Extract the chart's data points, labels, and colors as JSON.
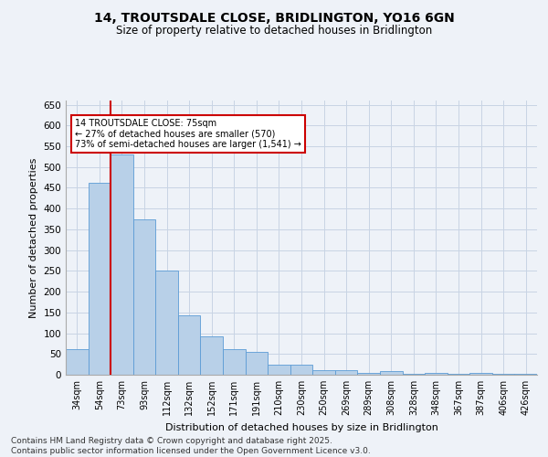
{
  "title1": "14, TROUTSDALE CLOSE, BRIDLINGTON, YO16 6GN",
  "title2": "Size of property relative to detached houses in Bridlington",
  "xlabel": "Distribution of detached houses by size in Bridlington",
  "ylabel": "Number of detached properties",
  "categories": [
    "34sqm",
    "54sqm",
    "73sqm",
    "93sqm",
    "112sqm",
    "132sqm",
    "152sqm",
    "171sqm",
    "191sqm",
    "210sqm",
    "230sqm",
    "250sqm",
    "269sqm",
    "289sqm",
    "308sqm",
    "328sqm",
    "348sqm",
    "367sqm",
    "387sqm",
    "406sqm",
    "426sqm"
  ],
  "values": [
    62,
    463,
    530,
    375,
    250,
    142,
    93,
    62,
    55,
    25,
    25,
    10,
    10,
    5,
    8,
    2,
    4,
    2,
    5,
    3,
    3
  ],
  "bar_color": "#b8d0e8",
  "bar_edge_color": "#5b9bd5",
  "grid_color": "#c8d4e4",
  "bg_color": "#eef2f8",
  "ref_line_color": "#cc0000",
  "annotation_text": "14 TROUTSDALE CLOSE: 75sqm\n← 27% of detached houses are smaller (570)\n73% of semi-detached houses are larger (1,541) →",
  "annotation_box_color": "#ffffff",
  "annotation_box_edge": "#cc0000",
  "footer1": "Contains HM Land Registry data © Crown copyright and database right 2025.",
  "footer2": "Contains public sector information licensed under the Open Government Licence v3.0.",
  "ylim_max": 660,
  "yticks": [
    0,
    50,
    100,
    150,
    200,
    250,
    300,
    350,
    400,
    450,
    500,
    550,
    600,
    650
  ]
}
